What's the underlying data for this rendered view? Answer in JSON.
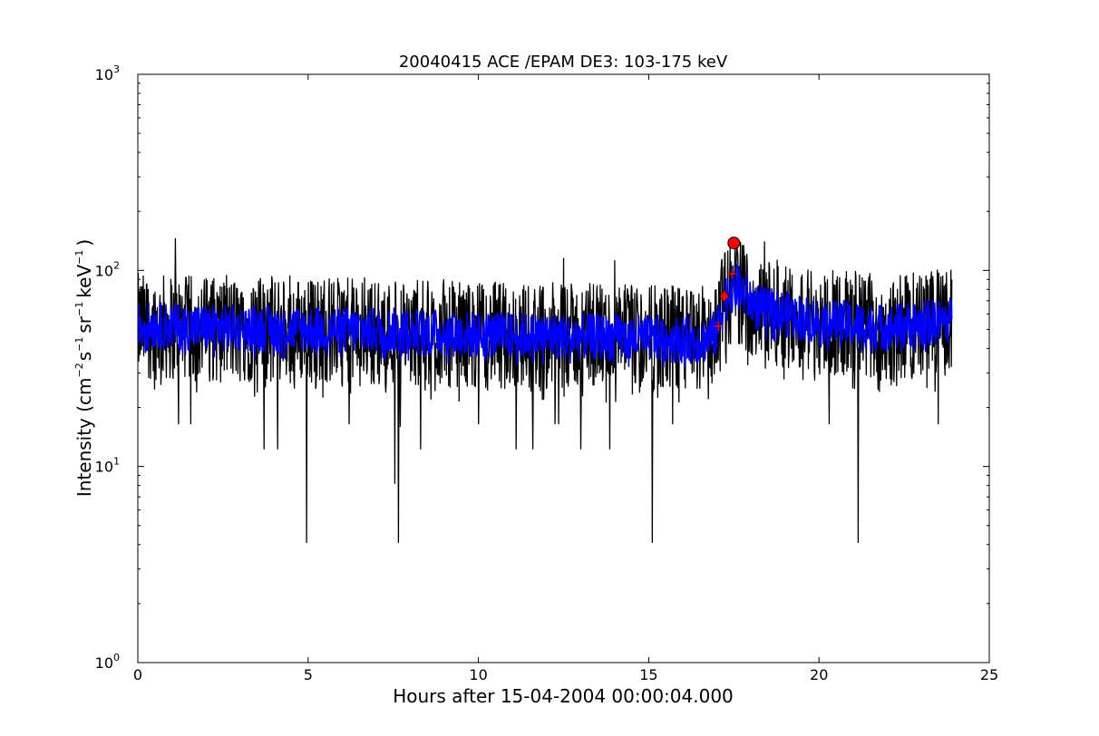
{
  "chart_data": {
    "type": "line",
    "title": "20040415 ACE /EPAM DE3: 103-175 keV",
    "xlabel": "Hours after 15-04-2004 00:00:04.000",
    "ylabel": {
      "prefix": "Intensity (cm",
      "sup1": "−2",
      "mid1": "s",
      "sup2": "−1",
      "mid2": "sr",
      "sup3": "−1",
      "mid3": "keV",
      "sup4": "−1",
      "suffix": ")"
    },
    "xlim": [
      0,
      25
    ],
    "ylim": [
      1,
      1000
    ],
    "yscale": "log",
    "grid": false,
    "xticks": [
      0,
      5,
      10,
      15,
      20,
      25
    ],
    "xtick_labels": [
      "0",
      "5",
      "10",
      "15",
      "20",
      "25"
    ],
    "yticks": [
      {
        "value": 1,
        "base": "10",
        "exp": "0"
      },
      {
        "value": 10,
        "base": "10",
        "exp": "1"
      },
      {
        "value": 100,
        "base": "10",
        "exp": "2"
      },
      {
        "value": 1000,
        "base": "10",
        "exp": "3"
      }
    ],
    "series": [
      {
        "color": "#000000",
        "x_range": [
          0.0,
          23.9
        ],
        "baseline_segments": [
          [
            0,
            52
          ],
          [
            2,
            50
          ],
          [
            5,
            50
          ],
          [
            8,
            48
          ],
          [
            10,
            47
          ],
          [
            13,
            46
          ],
          [
            15,
            45
          ],
          [
            16.6,
            44
          ],
          [
            17.0,
            48
          ],
          [
            17.3,
            75
          ],
          [
            17.6,
            80
          ],
          [
            18.2,
            62
          ],
          [
            19.0,
            60
          ],
          [
            20.0,
            55
          ],
          [
            22.0,
            50
          ],
          [
            23.9,
            55
          ]
        ],
        "spikes": [
          {
            "x": 1.1,
            "y": 145
          },
          {
            "x": 15.7,
            "y": 155
          },
          {
            "x": 18.4,
            "y": 140
          },
          {
            "x": 17.6,
            "y": 125
          },
          {
            "x": 12.5,
            "y": 115
          },
          {
            "x": 14.0,
            "y": 112
          },
          {
            "x": 4.95,
            "y": 4.1
          },
          {
            "x": 7.65,
            "y": 4.1
          },
          {
            "x": 15.1,
            "y": 4.1
          },
          {
            "x": 21.15,
            "y": 4.1
          },
          {
            "x": 7.55,
            "y": 8.2
          },
          {
            "x": 3.7,
            "y": 12.3
          },
          {
            "x": 4.1,
            "y": 12.3
          },
          {
            "x": 8.3,
            "y": 12.3
          },
          {
            "x": 11.1,
            "y": 12.3
          },
          {
            "x": 11.6,
            "y": 12.3
          },
          {
            "x": 13.0,
            "y": 12.3
          },
          {
            "x": 13.85,
            "y": 12.3
          },
          {
            "x": 7.7,
            "y": 16
          },
          {
            "x": 1.2,
            "y": 16.5
          },
          {
            "x": 1.55,
            "y": 16.5
          },
          {
            "x": 6.2,
            "y": 16.5
          },
          {
            "x": 10.0,
            "y": 16.5
          },
          {
            "x": 12.25,
            "y": 16.5
          },
          {
            "x": 12.35,
            "y": 16.5
          },
          {
            "x": 15.7,
            "y": 16.5
          },
          {
            "x": 20.3,
            "y": 16.5
          },
          {
            "x": 21.05,
            "y": 25
          },
          {
            "x": 23.5,
            "y": 16.5
          }
        ]
      },
      {
        "color": "#0000ff",
        "x_range": [
          0.0,
          23.9
        ],
        "baseline_segments": [
          [
            0,
            53
          ],
          [
            2,
            51
          ],
          [
            5,
            50
          ],
          [
            8,
            49
          ],
          [
            10,
            47
          ],
          [
            13,
            46
          ],
          [
            15,
            45
          ],
          [
            16.6,
            44
          ],
          [
            17.0,
            48
          ],
          [
            17.3,
            78
          ],
          [
            17.6,
            82
          ],
          [
            18.2,
            64
          ],
          [
            19.0,
            60
          ],
          [
            20.0,
            55
          ],
          [
            22.0,
            51
          ],
          [
            23.9,
            56
          ]
        ]
      }
    ],
    "markers": [
      {
        "shape": "circle",
        "color": "#ff0000",
        "x": 17.5,
        "y": 138
      },
      {
        "shape": "diamond",
        "color": "#ff0000",
        "x": 17.22,
        "y": 74
      },
      {
        "shape": "plus",
        "color": "#ff0000",
        "x": 17.05,
        "y": 52
      },
      {
        "shape": "plus",
        "color": "#ff0000",
        "x": 17.45,
        "y": 96
      }
    ]
  }
}
